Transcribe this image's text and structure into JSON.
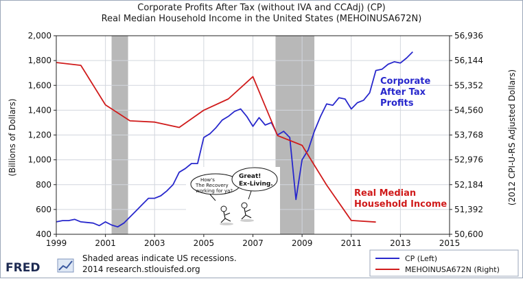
{
  "chart_data": {
    "type": "line",
    "title": "Corporate Profits After Tax (without IVA and CCAdj) (CP)",
    "subtitle": "Real Median Household Income in the United States (MEHOINUSA672N)",
    "ylabel_left": "(Billions of Dollars)",
    "ylabel_right": "(2012 CPI-U-RS Adjusted Dollars)",
    "x_range": [
      1999,
      2015
    ],
    "x_ticks": [
      "1999",
      "2001",
      "2003",
      "2005",
      "2007",
      "2009",
      "2011",
      "2013",
      "2015"
    ],
    "y_left_range": [
      400,
      2000
    ],
    "y_left_ticks": [
      "400",
      "600",
      "800",
      "1,000",
      "1,200",
      "1,400",
      "1,600",
      "1,800",
      "2,000"
    ],
    "y_right_range": [
      50600,
      56936
    ],
    "y_right_ticks": [
      "50,600",
      "51,392",
      "52,184",
      "52,976",
      "53,768",
      "54,560",
      "55,352",
      "56,144",
      "56,936"
    ],
    "grid": true,
    "recessions": [
      {
        "start": 2001.25,
        "end": 2001.92
      },
      {
        "start": 2007.92,
        "end": 2009.5
      }
    ],
    "series": [
      {
        "name": "CP (Left)",
        "axis": "left",
        "color": "#2727cc",
        "x": [
          1999.0,
          1999.25,
          1999.5,
          1999.75,
          2000.0,
          2000.25,
          2000.5,
          2000.75,
          2001.0,
          2001.25,
          2001.5,
          2001.75,
          2002.0,
          2002.25,
          2002.5,
          2002.75,
          2003.0,
          2003.25,
          2003.5,
          2003.75,
          2004.0,
          2004.25,
          2004.5,
          2004.75,
          2005.0,
          2005.25,
          2005.5,
          2005.75,
          2006.0,
          2006.25,
          2006.5,
          2006.75,
          2007.0,
          2007.25,
          2007.5,
          2007.75,
          2008.0,
          2008.25,
          2008.5,
          2008.75,
          2009.0,
          2009.25,
          2009.5,
          2009.75,
          2010.0,
          2010.25,
          2010.5,
          2010.75,
          2011.0,
          2011.25,
          2011.5,
          2011.75,
          2012.0,
          2012.25,
          2012.5,
          2012.75,
          2013.0,
          2013.25,
          2013.5
        ],
        "values": [
          500,
          510,
          510,
          520,
          500,
          495,
          490,
          470,
          500,
          475,
          460,
          490,
          540,
          590,
          640,
          690,
          690,
          710,
          750,
          800,
          900,
          930,
          970,
          970,
          1180,
          1210,
          1260,
          1320,
          1350,
          1390,
          1410,
          1350,
          1270,
          1340,
          1280,
          1300,
          1200,
          1230,
          1180,
          680,
          1000,
          1080,
          1230,
          1350,
          1450,
          1440,
          1500,
          1490,
          1410,
          1460,
          1480,
          1540,
          1720,
          1730,
          1770,
          1790,
          1780,
          1820,
          1870
        ]
      },
      {
        "name": "MEHOINUSA672N (Right)",
        "axis": "right",
        "color": "#d01b1b",
        "x": [
          1999,
          2000,
          2001,
          2002,
          2003,
          2004,
          2005,
          2006,
          2007,
          2008,
          2009,
          2010,
          2011,
          2012
        ],
        "values": [
          56080,
          55990,
          54730,
          54220,
          54180,
          54010,
          54560,
          54920,
          55630,
          53750,
          53440,
          52170,
          51040,
          50990
        ]
      }
    ],
    "annotations": {
      "blue_label": [
        "Corporate",
        "After Tax",
        "Profits"
      ],
      "red_label": [
        "Real Median",
        "Household Income"
      ],
      "bubble_left": [
        "How's",
        "The Recovery",
        "working for ya?"
      ],
      "bubble_right": [
        "Great!",
        "Ex-Living."
      ]
    }
  },
  "footer": {
    "logo": "FRED",
    "note_line1": "Shaded areas indicate US recessions.",
    "note_line2": "2014 research.stlouisfed.org"
  },
  "legend": {
    "items": [
      {
        "label": "CP (Left)",
        "color": "#2727cc"
      },
      {
        "label": "MEHOINUSA672N (Right)",
        "color": "#d01b1b"
      }
    ]
  }
}
